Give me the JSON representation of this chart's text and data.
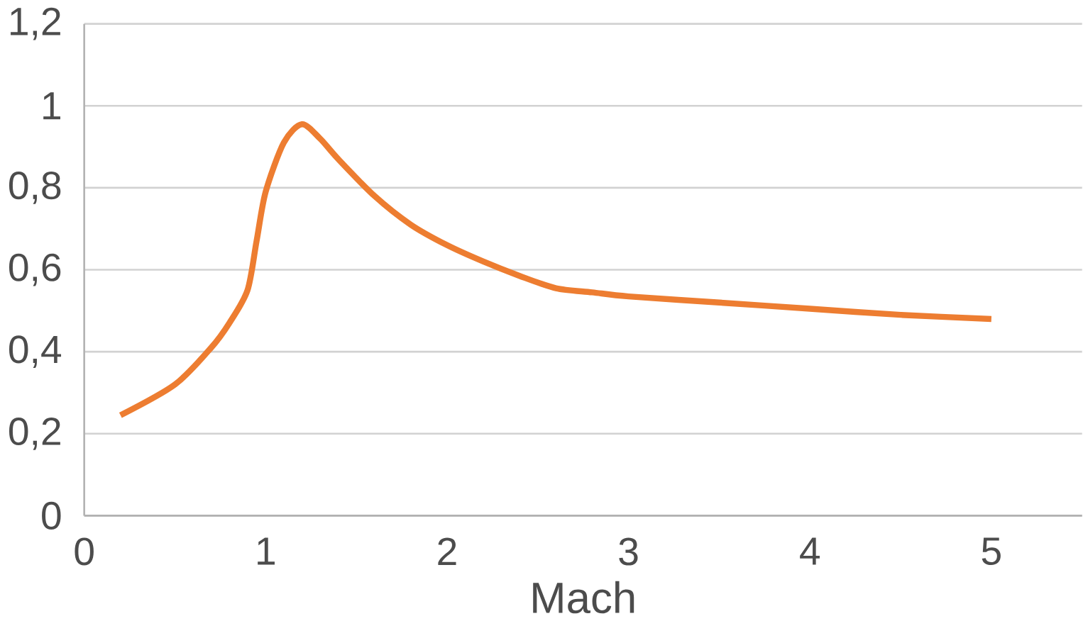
{
  "chart_data": {
    "type": "line",
    "xlabel": "Mach",
    "x": [
      0.2,
      0.5,
      0.7,
      0.8,
      0.9,
      0.95,
      1.0,
      1.1,
      1.2,
      1.3,
      1.4,
      1.6,
      1.8,
      2.0,
      2.2,
      2.4,
      2.6,
      2.8,
      3.0,
      3.5,
      4.0,
      4.5,
      5.0
    ],
    "series": [
      {
        "color": "#ed7d31",
        "values": [
          0.245,
          0.32,
          0.41,
          0.47,
          0.55,
          0.67,
          0.79,
          0.91,
          0.955,
          0.92,
          0.87,
          0.78,
          0.71,
          0.66,
          0.62,
          0.585,
          0.555,
          0.545,
          0.535,
          0.52,
          0.505,
          0.49,
          0.48
        ]
      }
    ],
    "xlim": [
      0,
      5.5
    ],
    "ylim": [
      0,
      1.2
    ],
    "xticks": [
      0,
      1,
      2,
      3,
      4,
      5
    ],
    "yticks": [
      0,
      {
        "value": 0.2,
        "label": "0,2"
      },
      {
        "value": 0.4,
        "label": "0,4"
      },
      {
        "value": 0.6,
        "label": "0,6"
      },
      {
        "value": 0.8,
        "label": "0,8"
      },
      1,
      {
        "value": 1.2,
        "label": "1,2"
      }
    ],
    "grid": "y",
    "marker": "none",
    "line_style": "solid"
  }
}
